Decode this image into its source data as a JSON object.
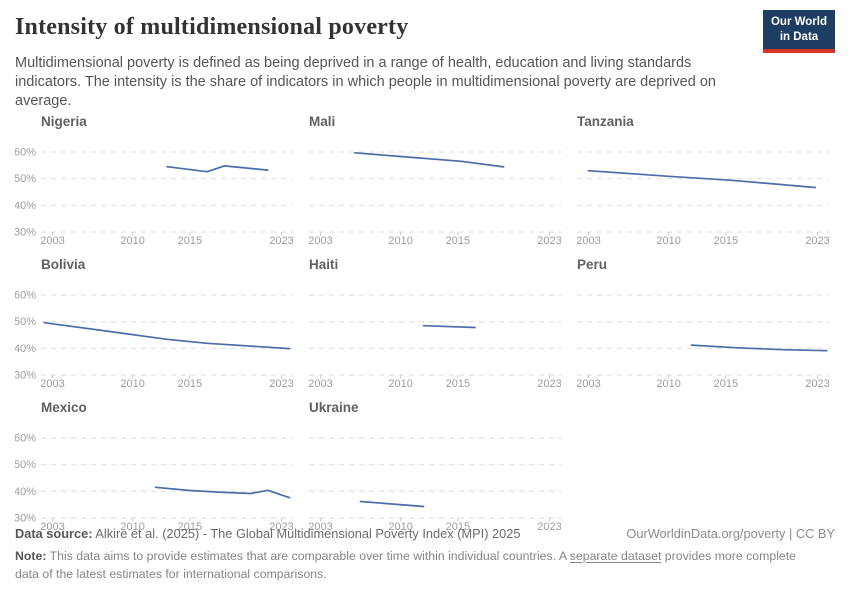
{
  "header": {
    "title": "Intensity of multidimensional poverty",
    "subtitle": "Multidimensional poverty is defined as being deprived in a range of health, education and living standards indicators. The intensity is the share of indicators in which people in multidimensional poverty are deprived on average.",
    "logo": {
      "line1": "Our World",
      "line2": "in Data",
      "bg_color": "#1d3d63",
      "accent_color": "#d8352a"
    }
  },
  "chart_data": {
    "type": "line",
    "title": "Intensity of multidimensional poverty",
    "xlabel": "",
    "ylabel": "",
    "x_domain": [
      2002,
      2024
    ],
    "x_ticks": [
      2003,
      2010,
      2015,
      2023
    ],
    "y_domain": [
      30,
      63
    ],
    "y_ticks": [
      30,
      40,
      50,
      60
    ],
    "y_tick_suffix": "%",
    "grid": true,
    "legend": "none (faceted small multiples, one series per panel)",
    "line_color": "#4c6da9",
    "facets": [
      {
        "name": "Nigeria",
        "points": [
          [
            2013,
            54.5
          ],
          [
            2016.5,
            52.6
          ],
          [
            2018,
            54.8
          ],
          [
            2021.8,
            53.2
          ]
        ]
      },
      {
        "name": "Mali",
        "points": [
          [
            2006,
            59.7
          ],
          [
            2010,
            58.3
          ],
          [
            2015.3,
            56.5
          ],
          [
            2019,
            54.4
          ]
        ]
      },
      {
        "name": "Tanzania",
        "points": [
          [
            2003,
            53.0
          ],
          [
            2010,
            50.9
          ],
          [
            2015.5,
            49.4
          ],
          [
            2022.8,
            46.7
          ]
        ]
      },
      {
        "name": "Bolivia",
        "points": [
          [
            2002.3,
            49.6
          ],
          [
            2008,
            46.3
          ],
          [
            2013,
            43.4
          ],
          [
            2016.5,
            41.9
          ],
          [
            2023.7,
            39.9
          ]
        ]
      },
      {
        "name": "Haiti",
        "points": [
          [
            2012,
            48.5
          ],
          [
            2016.5,
            47.8
          ]
        ]
      },
      {
        "name": "Peru",
        "points": [
          [
            2012,
            41.2
          ],
          [
            2016,
            40.2
          ],
          [
            2020,
            39.5
          ],
          [
            2023.8,
            39.1
          ]
        ]
      },
      {
        "name": "Mexico",
        "points": [
          [
            2012,
            41.5
          ],
          [
            2015,
            40.3
          ],
          [
            2017.5,
            39.7
          ],
          [
            2020.3,
            39.2
          ],
          [
            2021.8,
            40.4
          ],
          [
            2023.7,
            37.6
          ]
        ]
      },
      {
        "name": "Ukraine",
        "points": [
          [
            2006.5,
            36.2
          ],
          [
            2012,
            34.3
          ]
        ]
      }
    ]
  },
  "footer": {
    "source_label": "Data source:",
    "source_text": " Alkire et al. (2025) - The Global Multidimensional Poverty Index (MPI) 2025",
    "attribution": "OurWorldinData.org/poverty | CC BY",
    "note_label": "Note:",
    "note_before_link": " This data aims to provide estimates that are comparable over time within individual countries. A ",
    "note_link": "separate dataset",
    "note_after_link": " provides more complete data of the latest estimates for international comparisons."
  }
}
